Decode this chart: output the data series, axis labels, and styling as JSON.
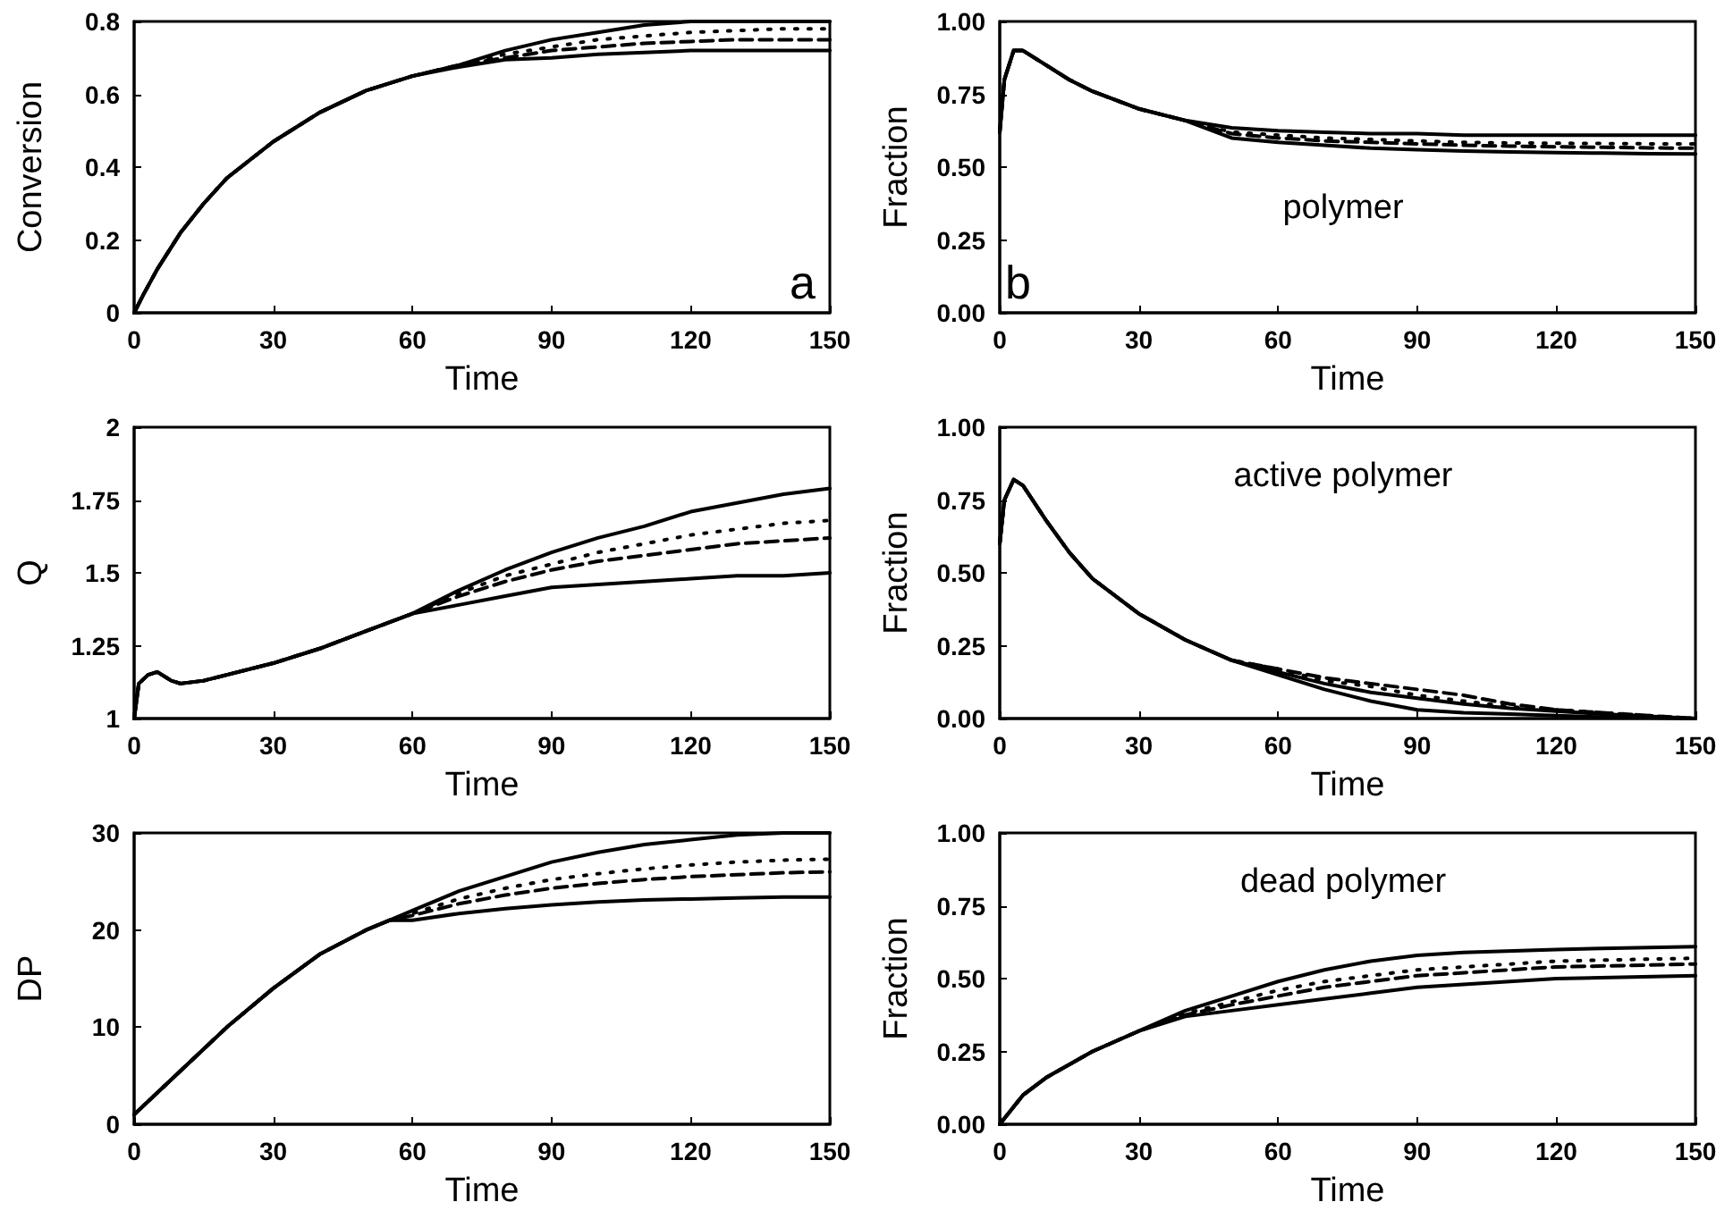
{
  "chart_data": [
    {
      "type": "line",
      "ylabel": "Conversion",
      "xlabel": "Time",
      "annotations": [
        "a"
      ],
      "marker": "none",
      "grid": false,
      "xlim": [
        0,
        150
      ],
      "xticks": [
        0,
        30,
        60,
        90,
        120,
        150
      ],
      "ylim": [
        0,
        0.8
      ],
      "yticks": [
        0,
        0.2,
        0.4,
        0.6,
        0.8
      ],
      "x": [
        0,
        2,
        5,
        10,
        15,
        20,
        30,
        40,
        50,
        60,
        70,
        80,
        90,
        100,
        110,
        120,
        130,
        140,
        150
      ],
      "series": [
        {
          "color": "#000000",
          "line_style": "solid",
          "values": [
            0,
            0.05,
            0.12,
            0.22,
            0.3,
            0.37,
            0.47,
            0.55,
            0.61,
            0.65,
            0.68,
            0.72,
            0.75,
            0.77,
            0.79,
            0.8,
            0.8,
            0.8,
            0.8
          ]
        },
        {
          "color": "#000000",
          "line_style": "dotted",
          "values": [
            0,
            0.05,
            0.12,
            0.22,
            0.3,
            0.37,
            0.47,
            0.55,
            0.61,
            0.65,
            0.68,
            0.71,
            0.73,
            0.75,
            0.76,
            0.77,
            0.775,
            0.78,
            0.78
          ]
        },
        {
          "color": "#000000",
          "line_style": "dashed",
          "values": [
            0,
            0.05,
            0.12,
            0.22,
            0.3,
            0.37,
            0.47,
            0.55,
            0.61,
            0.65,
            0.68,
            0.7,
            0.72,
            0.73,
            0.74,
            0.745,
            0.75,
            0.75,
            0.75
          ]
        },
        {
          "color": "#000000",
          "line_style": "solid",
          "values": [
            0,
            0.05,
            0.12,
            0.22,
            0.3,
            0.37,
            0.47,
            0.55,
            0.61,
            0.65,
            0.675,
            0.695,
            0.7,
            0.71,
            0.715,
            0.72,
            0.72,
            0.72,
            0.72
          ]
        }
      ]
    },
    {
      "type": "line",
      "ylabel": "Fraction",
      "xlabel": "Time",
      "annotations": [
        "b",
        "polymer"
      ],
      "marker": "none",
      "grid": false,
      "xlim": [
        0,
        150
      ],
      "xticks": [
        0,
        30,
        60,
        90,
        120,
        150
      ],
      "ylim": [
        0,
        1
      ],
      "yticks": [
        {
          "value": 0,
          "label": "0.00"
        },
        {
          "value": 0.25,
          "label": "0.25"
        },
        {
          "value": 0.5,
          "label": "0.50"
        },
        {
          "value": 0.75,
          "label": "0.75"
        },
        {
          "value": 1,
          "label": "1.00"
        }
      ],
      "x": [
        0,
        1,
        3,
        5,
        10,
        15,
        20,
        30,
        40,
        50,
        60,
        70,
        80,
        90,
        100,
        110,
        120,
        130,
        140,
        150
      ],
      "series": [
        {
          "color": "#000000",
          "line_style": "solid",
          "values": [
            0.62,
            0.8,
            0.9,
            0.9,
            0.85,
            0.8,
            0.76,
            0.7,
            0.66,
            0.6,
            0.585,
            0.575,
            0.565,
            0.56,
            0.555,
            0.552,
            0.55,
            0.548,
            0.546,
            0.545
          ]
        },
        {
          "color": "#000000",
          "line_style": "dotted",
          "values": [
            0.62,
            0.8,
            0.9,
            0.9,
            0.85,
            0.8,
            0.76,
            0.7,
            0.66,
            0.62,
            0.61,
            0.6,
            0.595,
            0.59,
            0.585,
            0.583,
            0.582,
            0.581,
            0.58,
            0.58
          ]
        },
        {
          "color": "#000000",
          "line_style": "dashed",
          "values": [
            0.62,
            0.8,
            0.9,
            0.9,
            0.85,
            0.8,
            0.76,
            0.7,
            0.66,
            0.615,
            0.6,
            0.59,
            0.585,
            0.58,
            0.575,
            0.572,
            0.57,
            0.568,
            0.566,
            0.565
          ]
        },
        {
          "color": "#000000",
          "line_style": "solid",
          "values": [
            0.62,
            0.8,
            0.9,
            0.9,
            0.85,
            0.8,
            0.76,
            0.7,
            0.66,
            0.635,
            0.625,
            0.62,
            0.615,
            0.615,
            0.61,
            0.61,
            0.61,
            0.61,
            0.61,
            0.61
          ]
        }
      ]
    },
    {
      "type": "line",
      "ylabel": "Q",
      "xlabel": "Time",
      "marker": "none",
      "grid": false,
      "xlim": [
        0,
        150
      ],
      "xticks": [
        0,
        30,
        60,
        90,
        120,
        150
      ],
      "ylim": [
        1,
        2
      ],
      "yticks": [
        1,
        1.25,
        1.5,
        1.75,
        2
      ],
      "x": [
        0,
        1,
        3,
        5,
        8,
        10,
        15,
        20,
        30,
        40,
        50,
        60,
        70,
        80,
        90,
        100,
        110,
        120,
        130,
        140,
        150
      ],
      "series": [
        {
          "color": "#000000",
          "line_style": "solid",
          "values": [
            1.0,
            1.12,
            1.15,
            1.16,
            1.13,
            1.12,
            1.13,
            1.15,
            1.19,
            1.24,
            1.3,
            1.36,
            1.44,
            1.51,
            1.57,
            1.62,
            1.66,
            1.71,
            1.74,
            1.77,
            1.79
          ]
        },
        {
          "color": "#000000",
          "line_style": "dotted",
          "values": [
            1.0,
            1.12,
            1.15,
            1.16,
            1.13,
            1.12,
            1.13,
            1.15,
            1.19,
            1.24,
            1.3,
            1.36,
            1.43,
            1.49,
            1.53,
            1.57,
            1.6,
            1.63,
            1.65,
            1.67,
            1.68
          ]
        },
        {
          "color": "#000000",
          "line_style": "dashed",
          "values": [
            1.0,
            1.12,
            1.15,
            1.16,
            1.13,
            1.12,
            1.13,
            1.15,
            1.19,
            1.24,
            1.3,
            1.36,
            1.42,
            1.47,
            1.51,
            1.54,
            1.56,
            1.58,
            1.6,
            1.61,
            1.62
          ]
        },
        {
          "color": "#000000",
          "line_style": "solid",
          "values": [
            1.0,
            1.12,
            1.15,
            1.16,
            1.13,
            1.12,
            1.13,
            1.15,
            1.19,
            1.24,
            1.3,
            1.36,
            1.39,
            1.42,
            1.45,
            1.46,
            1.47,
            1.48,
            1.49,
            1.49,
            1.5
          ]
        }
      ]
    },
    {
      "type": "line",
      "ylabel": "Fraction",
      "xlabel": "Time",
      "annotations": [
        "active polymer"
      ],
      "marker": "none",
      "grid": false,
      "xlim": [
        0,
        150
      ],
      "xticks": [
        0,
        30,
        60,
        90,
        120,
        150
      ],
      "ylim": [
        0,
        1
      ],
      "yticks": [
        {
          "value": 0,
          "label": "0.00"
        },
        {
          "value": 0.25,
          "label": "0.25"
        },
        {
          "value": 0.5,
          "label": "0.50"
        },
        {
          "value": 0.75,
          "label": "0.75"
        },
        {
          "value": 1,
          "label": "1.00"
        }
      ],
      "x": [
        0,
        1,
        3,
        5,
        10,
        15,
        20,
        30,
        40,
        50,
        60,
        70,
        80,
        90,
        100,
        110,
        120,
        130,
        140,
        150
      ],
      "series": [
        {
          "color": "#000000",
          "line_style": "solid",
          "values": [
            0.6,
            0.75,
            0.82,
            0.8,
            0.68,
            0.57,
            0.48,
            0.36,
            0.27,
            0.2,
            0.16,
            0.12,
            0.09,
            0.07,
            0.05,
            0.035,
            0.025,
            0.015,
            0.008,
            0
          ]
        },
        {
          "color": "#000000",
          "line_style": "dotted",
          "values": [
            0.6,
            0.75,
            0.82,
            0.8,
            0.68,
            0.57,
            0.48,
            0.36,
            0.27,
            0.2,
            0.17,
            0.13,
            0.11,
            0.08,
            0.06,
            0.04,
            0.03,
            0.02,
            0.01,
            0
          ]
        },
        {
          "color": "#000000",
          "line_style": "dashed",
          "values": [
            0.6,
            0.75,
            0.82,
            0.8,
            0.68,
            0.57,
            0.48,
            0.36,
            0.27,
            0.2,
            0.17,
            0.14,
            0.12,
            0.1,
            0.08,
            0.05,
            0.03,
            0.02,
            0.01,
            0
          ]
        },
        {
          "color": "#000000",
          "line_style": "solid",
          "values": [
            0.6,
            0.75,
            0.82,
            0.8,
            0.68,
            0.57,
            0.48,
            0.36,
            0.27,
            0.2,
            0.15,
            0.1,
            0.06,
            0.03,
            0.02,
            0.015,
            0.01,
            0.005,
            0.003,
            0
          ]
        }
      ]
    },
    {
      "type": "line",
      "ylabel": "DP",
      "xlabel": "Time",
      "marker": "none",
      "grid": false,
      "xlim": [
        0,
        150
      ],
      "xticks": [
        0,
        30,
        60,
        90,
        120,
        150
      ],
      "ylim": [
        0,
        30
      ],
      "yticks": [
        0,
        10,
        20,
        30
      ],
      "x": [
        0,
        10,
        20,
        30,
        40,
        50,
        55,
        60,
        70,
        80,
        90,
        100,
        110,
        120,
        130,
        140,
        150
      ],
      "series": [
        {
          "color": "#000000",
          "line_style": "solid",
          "values": [
            1,
            5.5,
            10,
            14,
            17.5,
            20,
            21,
            22,
            24,
            25.5,
            27,
            28,
            28.8,
            29.3,
            29.8,
            30,
            30
          ]
        },
        {
          "color": "#000000",
          "line_style": "dotted",
          "values": [
            1,
            5.5,
            10,
            14,
            17.5,
            20,
            21,
            21.7,
            23.2,
            24.3,
            25.2,
            25.8,
            26.3,
            26.7,
            27,
            27.2,
            27.3
          ]
        },
        {
          "color": "#000000",
          "line_style": "dashed",
          "values": [
            1,
            5.5,
            10,
            14,
            17.5,
            20,
            21,
            21.5,
            22.7,
            23.6,
            24.3,
            24.8,
            25.2,
            25.5,
            25.7,
            25.9,
            26
          ]
        },
        {
          "color": "#000000",
          "line_style": "solid",
          "values": [
            1,
            5.5,
            10,
            14,
            17.5,
            20,
            21,
            21,
            21.7,
            22.2,
            22.6,
            22.9,
            23.1,
            23.2,
            23.3,
            23.4,
            23.4
          ]
        }
      ]
    },
    {
      "type": "line",
      "ylabel": "Fraction",
      "xlabel": "Time",
      "annotations": [
        "dead polymer"
      ],
      "marker": "none",
      "grid": false,
      "xlim": [
        0,
        150
      ],
      "xticks": [
        0,
        30,
        60,
        90,
        120,
        150
      ],
      "ylim": [
        0,
        1
      ],
      "yticks": [
        {
          "value": 0,
          "label": "0.00"
        },
        {
          "value": 0.25,
          "label": "0.25"
        },
        {
          "value": 0.5,
          "label": "0.50"
        },
        {
          "value": 0.75,
          "label": "0.75"
        },
        {
          "value": 1,
          "label": "1.00"
        }
      ],
      "x": [
        0,
        5,
        10,
        20,
        30,
        40,
        50,
        60,
        70,
        80,
        90,
        100,
        120,
        150
      ],
      "series": [
        {
          "color": "#000000",
          "line_style": "solid",
          "values": [
            0,
            0.1,
            0.16,
            0.25,
            0.32,
            0.37,
            0.39,
            0.41,
            0.43,
            0.45,
            0.47,
            0.48,
            0.5,
            0.51
          ]
        },
        {
          "color": "#000000",
          "line_style": "dotted",
          "values": [
            0,
            0.1,
            0.16,
            0.25,
            0.32,
            0.38,
            0.42,
            0.46,
            0.49,
            0.51,
            0.53,
            0.54,
            0.56,
            0.57
          ]
        },
        {
          "color": "#000000",
          "line_style": "dashed",
          "values": [
            0,
            0.1,
            0.16,
            0.25,
            0.32,
            0.375,
            0.41,
            0.44,
            0.47,
            0.49,
            0.51,
            0.52,
            0.54,
            0.55
          ]
        },
        {
          "color": "#000000",
          "line_style": "solid",
          "values": [
            0,
            0.1,
            0.16,
            0.25,
            0.32,
            0.39,
            0.44,
            0.49,
            0.53,
            0.56,
            0.58,
            0.59,
            0.6,
            0.61
          ]
        }
      ]
    }
  ]
}
